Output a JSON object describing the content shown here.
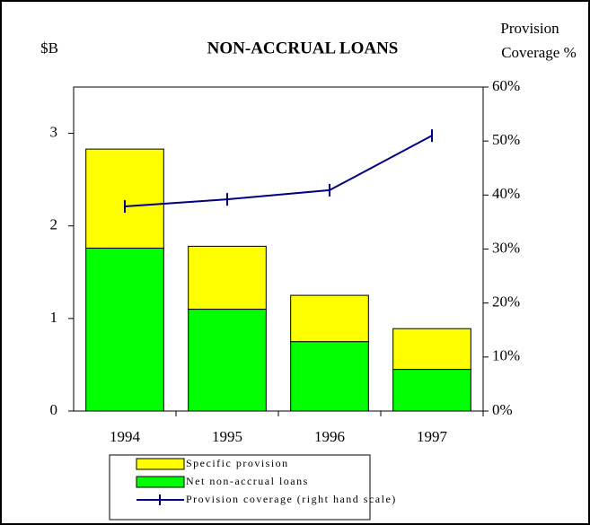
{
  "chart_data": {
    "type": "bar",
    "stacked": true,
    "title": "NON-ACCRUAL LOANS",
    "ylabel": "$B",
    "y2label": [
      "Provision",
      "Coverage %"
    ],
    "categories": [
      "1994",
      "1995",
      "1996",
      "1997"
    ],
    "series": [
      {
        "name": "Net non-accrual loans",
        "color": "#00ff00",
        "values": [
          1.76,
          1.1,
          0.75,
          0.45
        ]
      },
      {
        "name": "Specific provision",
        "color": "#ffff00",
        "values": [
          1.07,
          0.68,
          0.5,
          0.44
        ]
      },
      {
        "name": "Provision coverage (right hand scale)",
        "color": "#000080",
        "type": "line",
        "axis": "y2",
        "values": [
          37.9,
          39.2,
          40.9,
          51.0
        ]
      }
    ],
    "legend_order": [
      1,
      0,
      2
    ],
    "ylim": [
      0,
      3.5
    ],
    "yticks": [
      0,
      1,
      2,
      3
    ],
    "y2lim": [
      0,
      60
    ],
    "y2ticks": [
      {
        "value": 0,
        "label": "0%"
      },
      {
        "value": 10,
        "label": "10%"
      },
      {
        "value": 20,
        "label": "20%"
      },
      {
        "value": 30,
        "label": "30%"
      },
      {
        "value": 40,
        "label": "40%"
      },
      {
        "value": 50,
        "label": "50%"
      },
      {
        "value": 60,
        "label": "60%"
      }
    ]
  }
}
